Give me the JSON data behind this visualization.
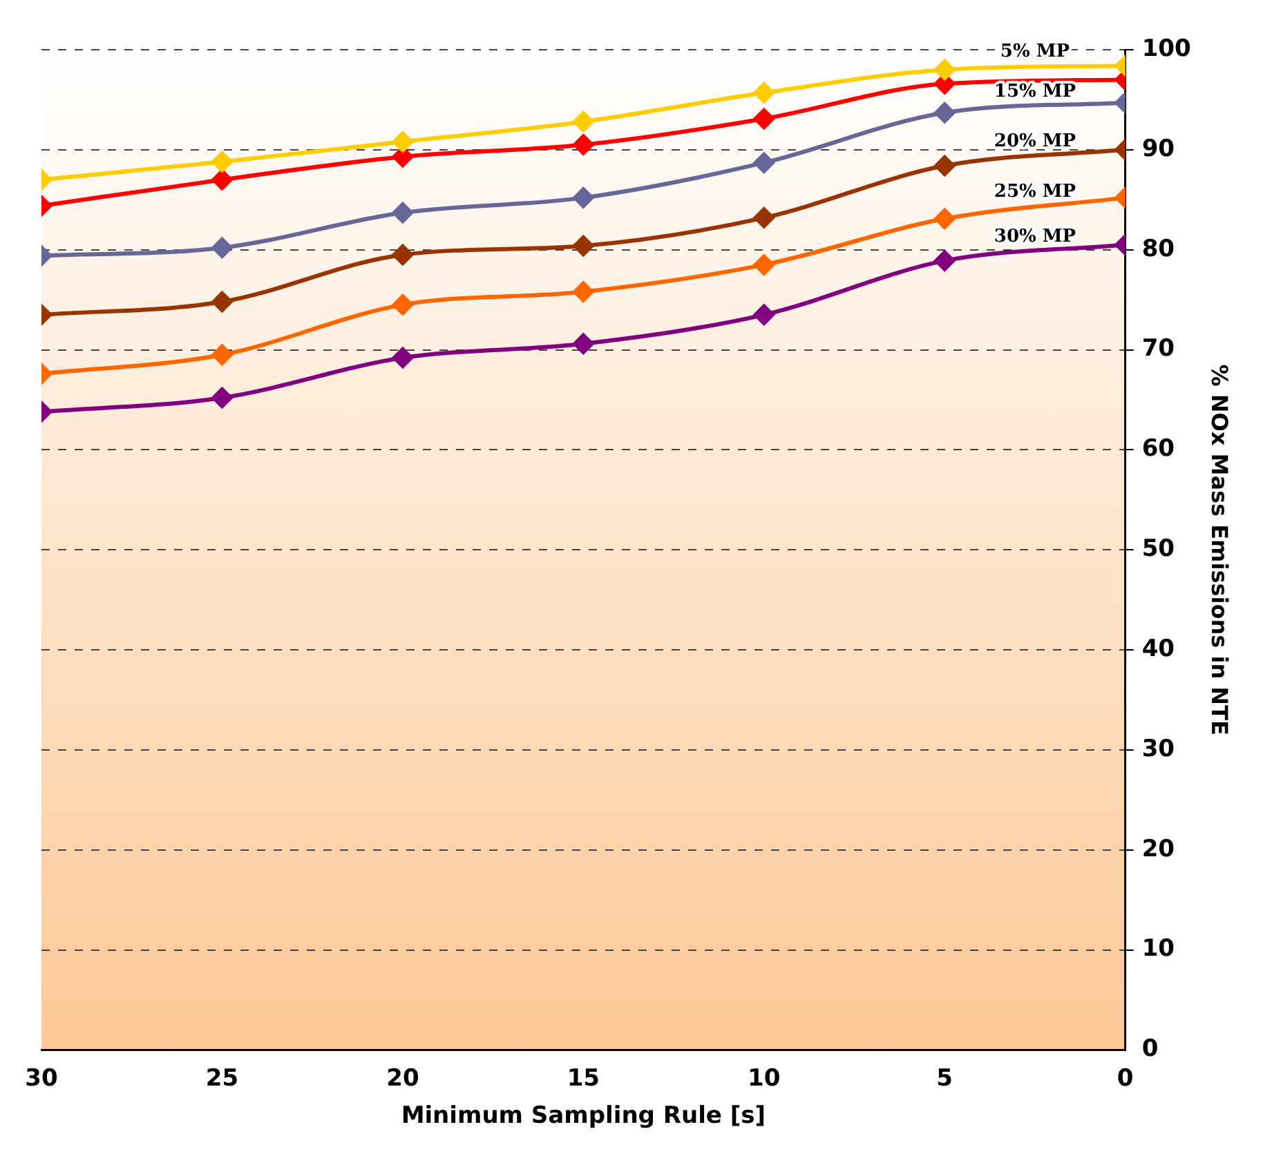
{
  "chart_data": {
    "type": "line",
    "xlabel": "Minimum Sampling Rule [s]",
    "ylabel": "% NOx Mass Emissions in NTE",
    "x": [
      30,
      25,
      20,
      15,
      10,
      5,
      0
    ],
    "xlim": [
      30,
      0
    ],
    "xticks": [
      30,
      25,
      20,
      15,
      10,
      5,
      0
    ],
    "ylim": [
      0,
      100
    ],
    "yticks": [
      0,
      10,
      20,
      30,
      40,
      50,
      60,
      70,
      80,
      90,
      100
    ],
    "grid": "y",
    "legend": false,
    "marker": "diamond",
    "line_style": "solid",
    "series": [
      {
        "name": "5% MP",
        "color": "#ffcc00",
        "values": [
          87.0,
          88.8,
          90.8,
          92.8,
          95.7,
          98.0,
          98.4
        ]
      },
      {
        "color": "#ff0000",
        "values": [
          84.4,
          87.0,
          89.3,
          90.5,
          93.1,
          96.6,
          97.0
        ]
      },
      {
        "name": "15% MP",
        "color": "#666699",
        "values": [
          79.4,
          80.2,
          83.7,
          85.2,
          88.7,
          93.7,
          94.7
        ]
      },
      {
        "name": "20% MP",
        "color": "#993300",
        "values": [
          73.5,
          74.8,
          79.5,
          80.4,
          83.2,
          88.4,
          90.0
        ]
      },
      {
        "name": "25% MP",
        "color": "#ff6600",
        "values": [
          67.6,
          69.5,
          74.5,
          75.8,
          78.5,
          83.1,
          85.2
        ]
      },
      {
        "name": "30% MP",
        "color": "#800080",
        "values": [
          63.8,
          65.2,
          69.2,
          70.6,
          73.5,
          78.9,
          80.5
        ]
      }
    ]
  }
}
